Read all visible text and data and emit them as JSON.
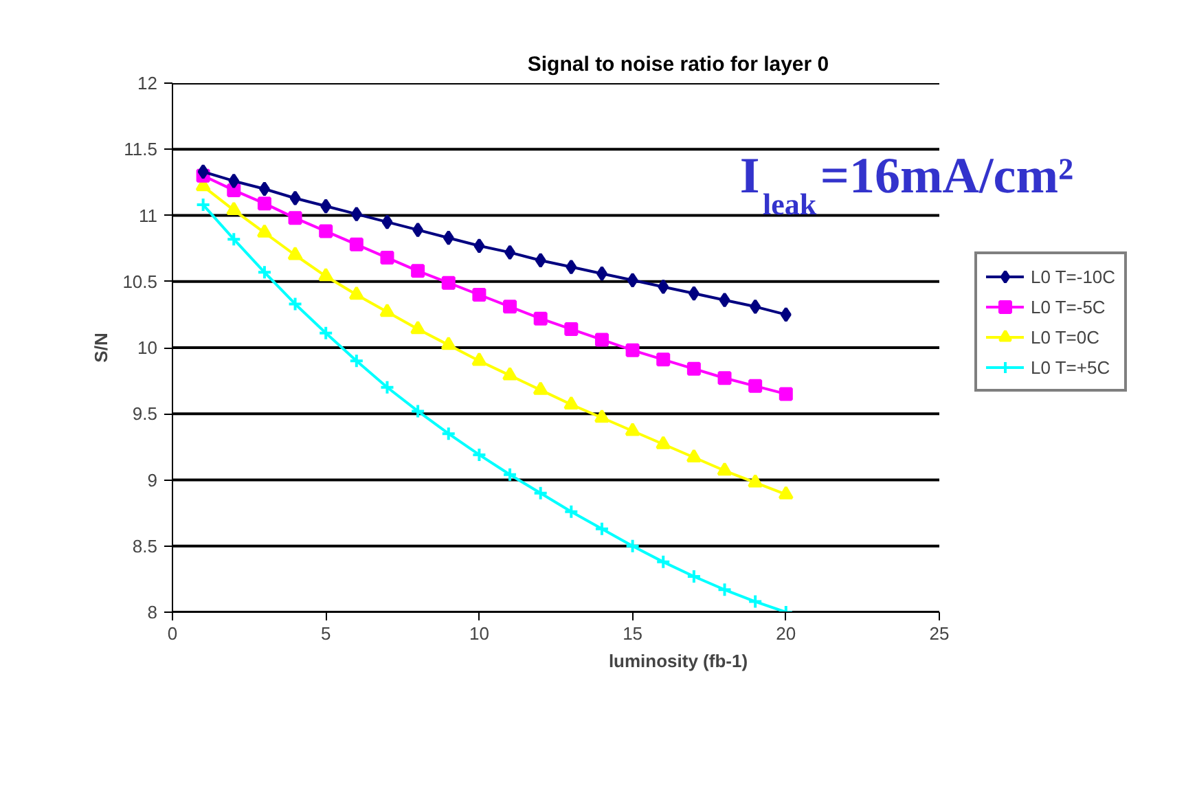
{
  "chart_data": {
    "type": "line",
    "title": "Signal to noise ratio for layer 0",
    "xlabel": "luminosity (fb-1)",
    "ylabel": "S/N",
    "x": [
      1,
      2,
      3,
      4,
      5,
      6,
      7,
      8,
      9,
      10,
      11,
      12,
      13,
      14,
      15,
      16,
      17,
      18,
      19,
      20
    ],
    "series": [
      {
        "name": "L0 T=-10C",
        "color": "#000080",
        "marker": "diamond",
        "values": [
          11.33,
          11.26,
          11.2,
          11.13,
          11.07,
          11.01,
          10.95,
          10.89,
          10.83,
          10.77,
          10.72,
          10.66,
          10.61,
          10.56,
          10.51,
          10.46,
          10.41,
          10.36,
          10.31,
          10.25
        ]
      },
      {
        "name": "L0 T=-5C",
        "color": "#ff00ff",
        "marker": "square",
        "values": [
          11.3,
          11.19,
          11.09,
          10.98,
          10.88,
          10.78,
          10.68,
          10.58,
          10.49,
          10.4,
          10.31,
          10.22,
          10.14,
          10.06,
          9.98,
          9.91,
          9.84,
          9.77,
          9.71,
          9.65
        ]
      },
      {
        "name": "L0 T=0C",
        "color": "#ffff00",
        "marker": "triangle",
        "values": [
          11.22,
          11.04,
          10.87,
          10.7,
          10.54,
          10.4,
          10.27,
          10.14,
          10.02,
          9.9,
          9.79,
          9.68,
          9.57,
          9.47,
          9.37,
          9.27,
          9.17,
          9.07,
          8.98,
          8.89
        ]
      },
      {
        "name": "L0 T=+5C",
        "color": "#00ffff",
        "marker": "cross",
        "values": [
          11.08,
          10.82,
          10.57,
          10.33,
          10.11,
          9.9,
          9.7,
          9.52,
          9.35,
          9.19,
          9.04,
          8.9,
          8.76,
          8.63,
          8.5,
          8.38,
          8.27,
          8.17,
          8.08,
          8.0
        ]
      }
    ],
    "xlim": [
      0,
      25
    ],
    "xticks": [
      0,
      5,
      10,
      15,
      20,
      25
    ],
    "ylim": [
      8,
      12
    ],
    "yticks": [
      8,
      8.5,
      9,
      9.5,
      10,
      10.5,
      11,
      11.5,
      12
    ],
    "grid": "y",
    "legend": "right",
    "line_style": "solid",
    "annotations": [
      "I$_{leak}$=16mA/cm²"
    ]
  }
}
